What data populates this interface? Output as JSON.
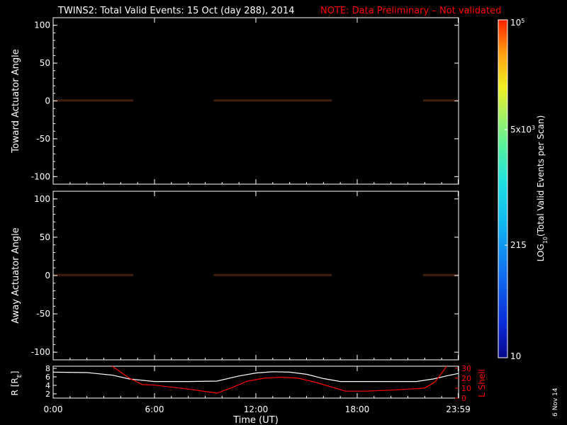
{
  "title": "TWINS2: Total Valid Events: 15 Oct (day 288), 2014",
  "note": "NOTE: Data Preliminary – Not validated",
  "date_stamp": "6 Nov 14",
  "colors": {
    "background": "#000000",
    "text": "#ffffff",
    "note": "#ff0000",
    "lshell": "#ff0000",
    "radius": "#ffffff"
  },
  "chart_data": [
    {
      "type": "heatmap",
      "id": "toward",
      "ylabel": "Toward Actuator Angle",
      "ylim": [
        -110,
        110
      ],
      "yticks": [
        100,
        50,
        0,
        -50,
        -100
      ],
      "xlim": [
        0,
        24
      ],
      "data_range_y": [
        -90,
        90
      ],
      "data_blocks_hours": [
        [
          0,
          4.75
        ],
        [
          9.5,
          16.5
        ],
        [
          21.9,
          24
        ]
      ],
      "value_scale": "log10"
    },
    {
      "type": "heatmap",
      "id": "away",
      "ylabel": "Away Actuator Angle",
      "ylim": [
        -110,
        110
      ],
      "yticks": [
        100,
        50,
        0,
        -50,
        -100
      ],
      "xlim": [
        0,
        24
      ],
      "data_range_y": [
        -90,
        90
      ],
      "data_blocks_hours": [
        [
          0,
          4.75
        ],
        [
          9.5,
          16.5
        ],
        [
          21.9,
          24
        ]
      ],
      "value_scale": "log10"
    },
    {
      "type": "line",
      "id": "orbit",
      "xlabel": "Time (UT)",
      "xlim": [
        0,
        24
      ],
      "xticks": [
        0,
        6,
        12,
        18,
        23.98
      ],
      "xticklabels": [
        "0:00",
        "6:00",
        "12:00",
        "18:00",
        "23:59"
      ],
      "ylabel_left": "R [RE]",
      "ylim_left": [
        1,
        8.5
      ],
      "yticks_left": [
        2,
        4,
        6,
        8
      ],
      "ylabel_right": "L Shell",
      "ylim_right": [
        0,
        32
      ],
      "yticks_right": [
        0,
        10,
        20,
        30
      ],
      "series": [
        {
          "name": "R",
          "axis": "left",
          "x": [
            0,
            2,
            3.5,
            4.5,
            6,
            8,
            9.7,
            11,
            12,
            13,
            14,
            15,
            16,
            17,
            18,
            20,
            21.5,
            22.5,
            23.5,
            24
          ],
          "values": [
            7.1,
            7.0,
            6.4,
            5.5,
            4.9,
            4.9,
            5.0,
            6.2,
            6.9,
            7.2,
            7.1,
            6.6,
            5.6,
            4.9,
            4.9,
            4.9,
            4.9,
            5.5,
            6.4,
            6.8
          ]
        },
        {
          "name": "L Shell",
          "axis": "right",
          "x": [
            3.5,
            4.5,
            5.3,
            6,
            8,
            9.7,
            10.5,
            11.5,
            12.5,
            13.5,
            14.5,
            15.5,
            16.5,
            17.3,
            18.5,
            20,
            22,
            22.6,
            23.3
          ],
          "values": [
            32,
            20,
            13.5,
            13,
            9,
            5,
            10,
            17,
            20,
            21,
            20,
            16,
            11,
            7,
            7,
            8,
            10,
            16,
            32
          ]
        }
      ]
    },
    {
      "type": "colorbar",
      "id": "colorbar",
      "label": "LOG10(Total Valid Events per Scan)",
      "label_main": "LOG",
      "label_sub": "10",
      "label_rest": "(Total Valid Events per Scan)",
      "scale": "log10",
      "range": [
        10,
        100000
      ],
      "ticks": [
        {
          "value": 100000,
          "base": "10",
          "exp": "5"
        },
        {
          "value": 5000,
          "base": "5x10",
          "exp": "3"
        },
        {
          "value": 215,
          "base": "215",
          "exp": ""
        },
        {
          "value": 10,
          "base": "10",
          "exp": ""
        }
      ]
    }
  ]
}
